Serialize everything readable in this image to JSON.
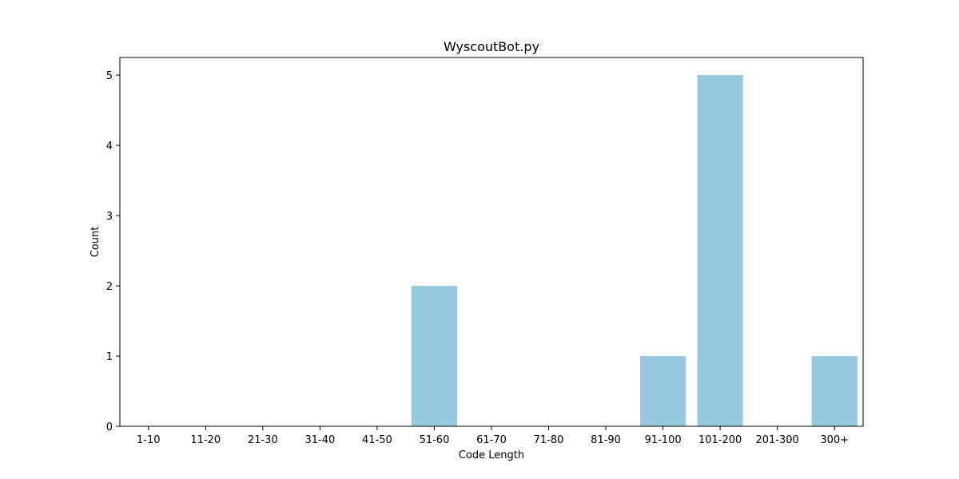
{
  "chart_data": {
    "type": "bar",
    "title": "WyscoutBot.py",
    "xlabel": "Code Length",
    "ylabel": "Count",
    "categories": [
      "1-10",
      "11-20",
      "21-30",
      "31-40",
      "41-50",
      "51-60",
      "61-70",
      "71-80",
      "81-90",
      "91-100",
      "101-200",
      "201-300",
      "300+"
    ],
    "values": [
      0,
      0,
      0,
      0,
      0,
      2,
      0,
      0,
      0,
      1,
      5,
      0,
      1
    ],
    "ylim": [
      0,
      5.25
    ],
    "yticks": [
      0,
      1,
      2,
      3,
      4,
      5
    ],
    "bar_color": "#96c9de",
    "grid": false
  }
}
